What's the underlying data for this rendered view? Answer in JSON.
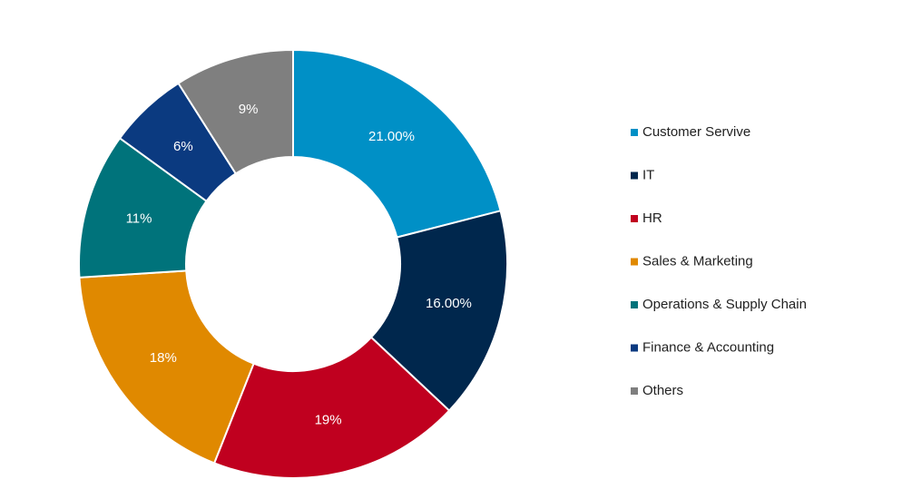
{
  "chart_data": {
    "type": "donut",
    "categories": [
      "Customer Servive",
      "IT",
      "HR",
      "Sales & Marketing",
      "Operations & Supply Chain",
      "Finance & Accounting",
      "Others"
    ],
    "values": [
      21,
      16,
      19,
      18,
      11,
      6,
      9
    ],
    "value_labels": [
      "21.00%",
      "16.00%",
      "19%",
      "18%",
      "11%",
      "6%",
      "9%"
    ],
    "colors": [
      "#0090c6",
      "#00274d",
      "#c0001f",
      "#e08900",
      "#00737b",
      "#0b3a80",
      "#7f7f7f"
    ],
    "legend": "right"
  }
}
